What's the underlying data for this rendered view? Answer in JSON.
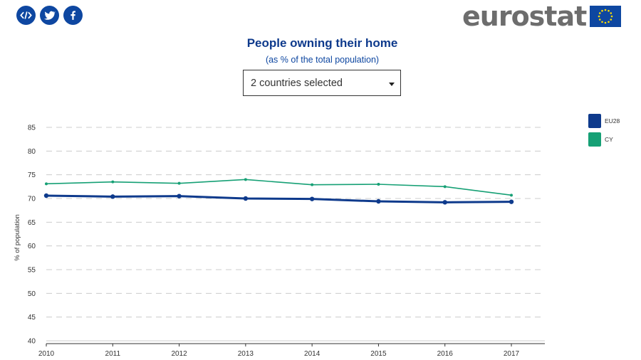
{
  "social": [
    {
      "name": "embed-icon"
    },
    {
      "name": "twitter-icon"
    },
    {
      "name": "facebook-icon"
    }
  ],
  "brand": {
    "logo_text": "eurostat",
    "color": "#6d6d6d",
    "flag_color": "#0e47a1",
    "star_color": "#ffdd00"
  },
  "title": "People owning their home",
  "subtitle": "(as % of the total population)",
  "selector": {
    "label": "2 countries selected"
  },
  "chart_data": {
    "type": "line",
    "title": "People owning their home",
    "subtitle": "(as % of the total population)",
    "xlabel": "",
    "ylabel": "% of population",
    "x": [
      2010,
      2011,
      2012,
      2013,
      2014,
      2015,
      2016,
      2017
    ],
    "ylim": [
      40,
      85
    ],
    "yticks": [
      40,
      45,
      50,
      55,
      60,
      65,
      70,
      75,
      80,
      85
    ],
    "grid": true,
    "legend_position": "right",
    "series": [
      {
        "name": "EU28",
        "color": "#0e3a8c",
        "values": [
          70.6,
          70.4,
          70.5,
          70.0,
          69.9,
          69.4,
          69.2,
          69.3
        ]
      },
      {
        "name": "CY",
        "color": "#16a075",
        "values": [
          73.1,
          73.5,
          73.2,
          74.0,
          72.9,
          73.0,
          72.5,
          70.7
        ]
      }
    ]
  }
}
